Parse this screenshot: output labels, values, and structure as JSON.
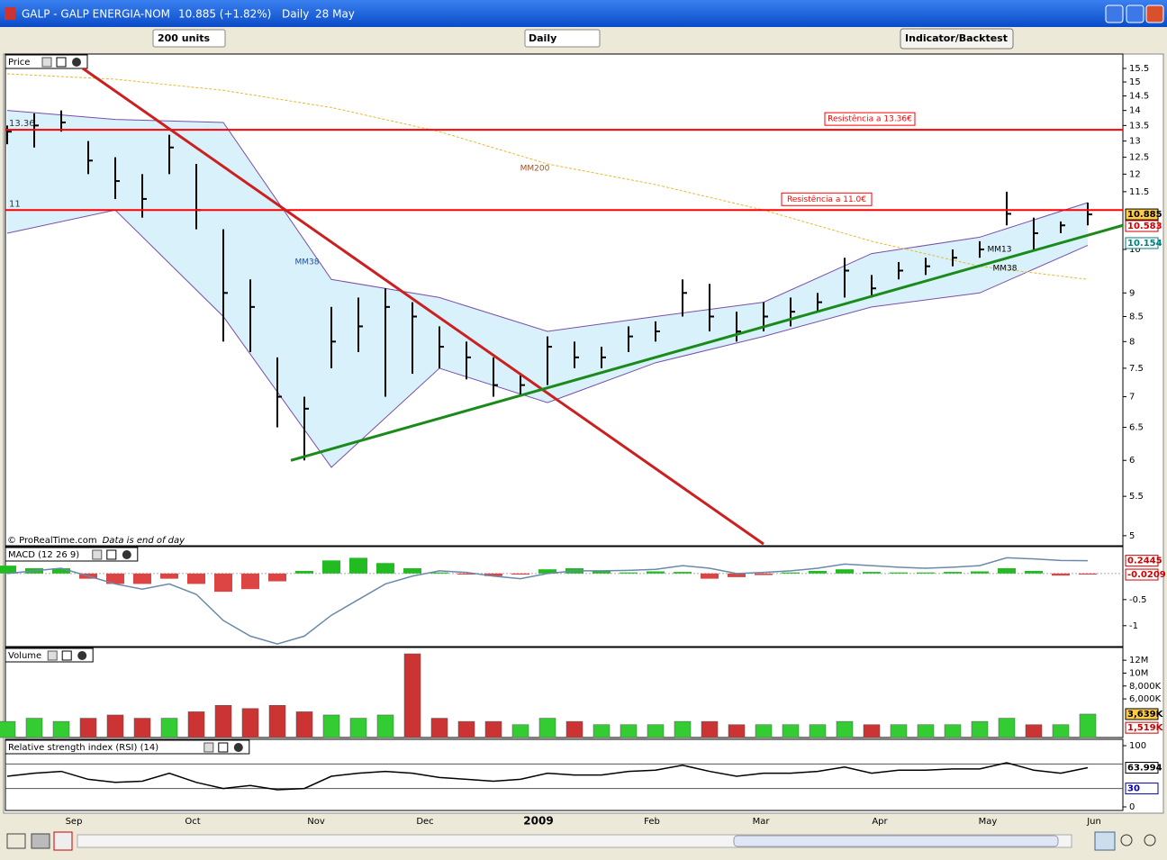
{
  "window": {
    "symbol": "GALP - GALP ENERGIA-NOM",
    "quote": "10.885 (+1.82%)",
    "period": "Daily",
    "date": "28 May"
  },
  "toolbar": {
    "units": "200 units",
    "interval": "Daily",
    "button": "Indicator/Backtest"
  },
  "footer_note": {
    "copyright": "© ProRealTime.com",
    "note": "Data is end of day"
  },
  "x_labels": [
    "Sep",
    "Oct",
    "Nov",
    "Dec",
    "2009",
    "Feb",
    "Mar",
    "Apr",
    "May",
    "Jun"
  ],
  "chart_data": [
    {
      "type": "ohlc",
      "title": "Price",
      "log_scale": true,
      "ylim": [
        4.88,
        15.98
      ],
      "yticks": [
        15.5,
        15,
        14.5,
        14,
        13.5,
        13,
        12.5,
        12,
        11.5,
        10,
        9,
        8.5,
        8,
        7.5,
        7,
        6.5,
        6,
        5.5,
        5
      ],
      "high": [
        13.5,
        13.9,
        14.0,
        13.0,
        12.5,
        12.0,
        13.2,
        12.3,
        10.5,
        9.3,
        7.7,
        7.0,
        8.7,
        8.9,
        9.1,
        8.8,
        8.3,
        8.0,
        7.7,
        7.4,
        8.1,
        8.0,
        7.9,
        8.3,
        8.4,
        9.3,
        9.2,
        8.6,
        8.8,
        8.9,
        9.0,
        9.8,
        9.4,
        9.7,
        9.8,
        10.0,
        10.2,
        11.5,
        10.8,
        10.7,
        11.2
      ],
      "low": [
        12.9,
        12.8,
        13.3,
        12.0,
        11.3,
        10.8,
        12.0,
        10.5,
        8.0,
        7.8,
        6.5,
        6.0,
        7.5,
        7.8,
        7.0,
        7.4,
        7.5,
        7.3,
        7.0,
        7.0,
        7.2,
        7.5,
        7.5,
        7.8,
        8.0,
        8.5,
        8.2,
        8.0,
        8.2,
        8.3,
        8.6,
        8.9,
        8.9,
        9.3,
        9.4,
        9.6,
        9.8,
        10.6,
        10.0,
        10.4,
        10.6
      ],
      "close": [
        13.3,
        13.5,
        13.6,
        12.4,
        11.8,
        11.3,
        12.8,
        11.0,
        9.0,
        8.7,
        7.0,
        6.8,
        8.0,
        8.3,
        8.7,
        8.5,
        7.9,
        7.7,
        7.2,
        7.2,
        7.9,
        7.7,
        7.7,
        8.1,
        8.2,
        9.0,
        8.5,
        8.2,
        8.5,
        8.6,
        8.8,
        9.5,
        9.1,
        9.5,
        9.6,
        9.8,
        10.0,
        10.9,
        10.4,
        10.6,
        10.885
      ],
      "bar_color": "#000000",
      "bollinger": {
        "upper": [
          14.0,
          13.7,
          13.6,
          9.3,
          8.9,
          8.2,
          8.5,
          8.8,
          9.9,
          10.3,
          11.2
        ],
        "lower": [
          10.4,
          11.0,
          8.5,
          5.9,
          7.5,
          6.9,
          7.6,
          8.1,
          8.7,
          9.0,
          10.1
        ],
        "fill": "#d9f1fb",
        "stroke": "#7a4fa8"
      },
      "mm200": {
        "values": [
          15.3,
          15.1,
          14.7,
          14.1,
          13.3,
          12.3,
          11.7,
          11.0,
          10.2,
          9.6,
          9.3
        ],
        "color": "#e8b830"
      },
      "levels": [
        {
          "value": 13.36,
          "label": "Resistência a 13.36€"
        },
        {
          "value": 11,
          "label": "Resistência a 11.0€"
        }
      ],
      "level_color": "#ff0000",
      "trendlines": [
        {
          "from": [
            2.8,
            15.5
          ],
          "to": [
            28,
            4.9
          ],
          "color": "#cc2020"
        },
        {
          "from": [
            10.5,
            6.0
          ],
          "to": [
            41.3,
            10.6
          ],
          "color": "#1a8a1a"
        }
      ],
      "annotations": [
        "MM200",
        "MM38",
        "MM13",
        "MM38"
      ],
      "markers": [
        {
          "value": 10.885,
          "color": "#000000",
          "bg": "#ffcc44"
        },
        {
          "value": 10.583,
          "color": "#cc0000",
          "bg": "#ffffff"
        },
        {
          "value": 10.154,
          "color": "#008080",
          "bg": "#ffffff"
        }
      ]
    },
    {
      "type": "macd",
      "title": "MACD (12 26 9)",
      "ylim": [
        -1.4,
        0.48
      ],
      "yticks": [
        -0.5,
        -1
      ],
      "histogram": [
        0.15,
        0.1,
        0.1,
        -0.1,
        -0.2,
        -0.2,
        -0.1,
        -0.2,
        -0.35,
        -0.3,
        -0.15,
        0.05,
        0.25,
        0.3,
        0.2,
        0.1,
        0.02,
        -0.02,
        -0.05,
        -0.02,
        0.08,
        0.1,
        0.05,
        0.02,
        0.04,
        0.03,
        -0.1,
        -0.07,
        -0.03,
        0.02,
        0.05,
        0.08,
        0.03,
        0.02,
        0.02,
        0.03,
        0.04,
        0.1,
        0.05,
        -0.04,
        -0.02
      ],
      "macd": [
        0.0,
        0.05,
        0.1,
        -0.05,
        -0.2,
        -0.3,
        -0.2,
        -0.4,
        -0.9,
        -1.2,
        -1.35,
        -1.2,
        -0.8,
        -0.5,
        -0.2,
        -0.05,
        0.05,
        0.02,
        -0.05,
        -0.1,
        0.0,
        0.05,
        0.05,
        0.06,
        0.08,
        0.15,
        0.1,
        0.0,
        0.02,
        0.05,
        0.1,
        0.18,
        0.15,
        0.12,
        0.1,
        0.12,
        0.15,
        0.3,
        0.28,
        0.25,
        0.2445
      ],
      "up_color": "#22bb22",
      "down_color": "#dd4444",
      "line_color": "#6a8aaa",
      "markers": [
        {
          "value": 0.2445,
          "color": "#cc0000",
          "bg": "#ffffff"
        },
        {
          "value": -0.0209,
          "color": "#cc0000",
          "bg": "#ffffff"
        }
      ]
    },
    {
      "type": "bar",
      "title": "Volume",
      "ylim": [
        0,
        13700000
      ],
      "yticks": [
        {
          "value": 12000000,
          "label": "12M"
        },
        {
          "value": 10000000,
          "label": "10M"
        },
        {
          "value": 8000000,
          "label": "8,000K"
        },
        {
          "value": 6000000,
          "label": "6,000K"
        }
      ],
      "values": [
        2500000,
        3000000,
        2500000,
        3000000,
        3500000,
        3000000,
        3000000,
        4000000,
        5000000,
        4500000,
        5000000,
        4000000,
        3500000,
        3000000,
        3500000,
        13000000,
        3000000,
        2500000,
        2500000,
        2000000,
        3000000,
        2500000,
        2000000,
        2000000,
        2000000,
        2500000,
        2500000,
        2000000,
        2000000,
        2000000,
        2000000,
        2500000,
        2000000,
        2000000,
        2000000,
        2000000,
        2500000,
        3000000,
        2000000,
        2000000,
        3639000
      ],
      "up_color": "#33cc33",
      "down_color": "#cc3333",
      "markers": [
        {
          "value": 3639000,
          "label": "3,639K",
          "color": "#000000",
          "bg": "#ffcc44"
        },
        {
          "value": 1519000,
          "label": "1,519K",
          "color": "#cc0000",
          "bg": "#ffffff"
        }
      ]
    },
    {
      "type": "line",
      "title": "Relative strength index (RSI) (14)",
      "ylim": [
        -5.9,
        107.4
      ],
      "yticks": [
        100,
        0
      ],
      "values": [
        50,
        55,
        58,
        45,
        40,
        42,
        55,
        40,
        30,
        35,
        28,
        30,
        50,
        55,
        58,
        55,
        48,
        45,
        42,
        45,
        55,
        52,
        52,
        58,
        60,
        68,
        58,
        50,
        55,
        55,
        58,
        65,
        55,
        60,
        60,
        62,
        62,
        72,
        60,
        55,
        64
      ],
      "color": "#000000",
      "levels": [
        70,
        30
      ],
      "markers": [
        {
          "value": 63.994,
          "color": "#000000",
          "bg": "#ffffff"
        },
        {
          "value": 30,
          "color": "#0000aa",
          "bg": "#ffffff"
        }
      ]
    }
  ]
}
